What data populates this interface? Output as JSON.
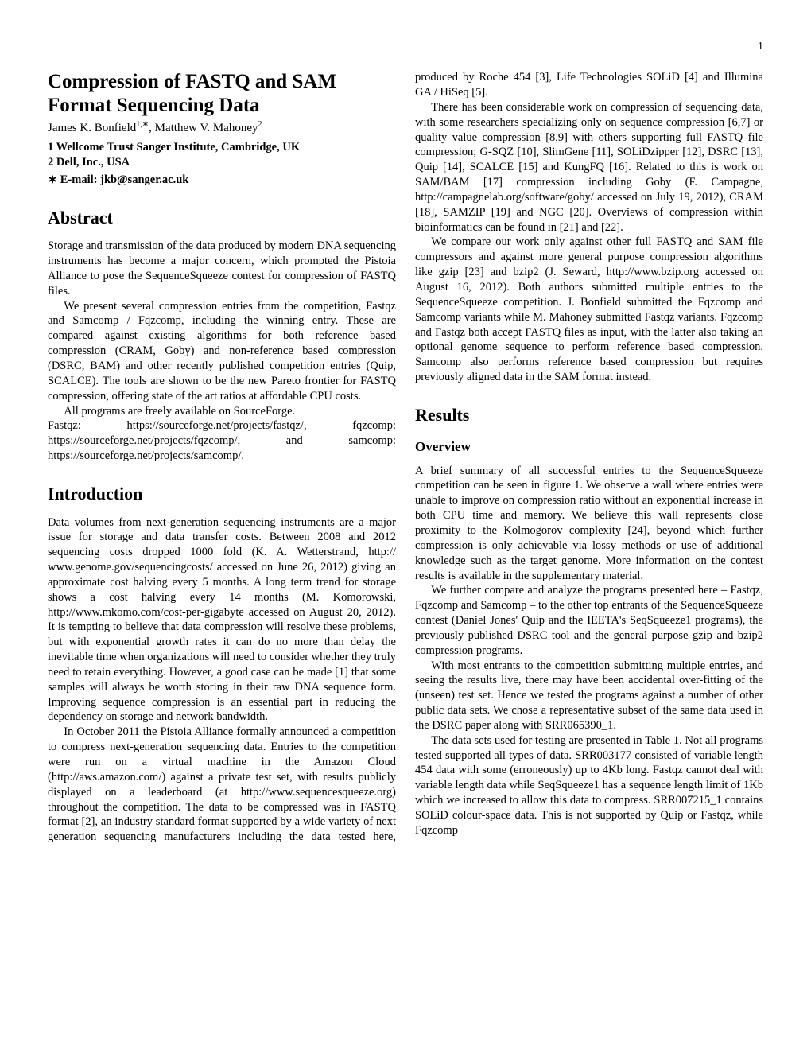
{
  "page_number": "1",
  "title": "Compression of FASTQ and SAM Format Sequencing Data",
  "authors_line": "James K. Bonfield",
  "author1_sup": "1,∗",
  "authors_sep": ", Matthew V. Mahoney",
  "author2_sup": "2",
  "affil1": "1 Wellcome Trust Sanger Institute, Cambridge, UK",
  "affil2": "2 Dell, Inc., USA",
  "email_label": "∗ E-mail: jkb@sanger.ac.uk",
  "abstract_heading": "Abstract",
  "abstract_p1": "Storage and transmission of the data produced by modern DNA sequencing instruments has become a major concern, which prompted the Pistoia Alliance to pose the SequenceSqueeze contest for compression of FASTQ files.",
  "abstract_p2": "We present several compression entries from the competition, Fastqz and Samcomp / Fqzcomp, including the winning entry. These are compared against existing algorithms for both reference based compression (CRAM, Goby) and non-reference based compression (DSRC, BAM) and other recently published competition entries (Quip, SCALCE). The tools are shown to be the new Pareto frontier for FASTQ compression, offering state of the art ratios at affordable CPU costs.",
  "abstract_p3": "All programs are freely available on SourceForge.",
  "abstract_p4": "Fastqz: https://sourceforge.net/projects/fastqz/, fqzcomp: https://sourceforge.net/projects/fqzcomp/, and samcomp: https://sourceforge.net/projects/samcomp/.",
  "intro_heading": "Introduction",
  "intro_p1": "Data volumes from next-generation sequencing instruments are a major issue for storage and data transfer costs. Between 2008 and 2012 sequencing costs dropped 1000 fold (K. A. Wetterstrand, http:// www.genome.gov/sequencingcosts/ accessed on June 26, 2012) giving an approximate cost halving every 5 months. A long term trend for storage shows a cost halving every 14 months (M. Komorowski, http://www.mkomo.com/cost-per-gigabyte accessed on August 20, 2012). It is tempting to believe that data compression will resolve these problems, but with exponential growth rates it can do no more than delay the inevitable time when organizations will need to consider whether they truly need to retain everything. However, a good case can be made [1] that some samples will always be worth storing in their raw DNA sequence form. Improving sequence compression is an essential part in reducing the dependency on storage and network bandwidth.",
  "intro_p2": "In October 2011 the Pistoia Alliance formally announced a competition to compress next-generation sequencing data. Entries to the competition were run on a virtual machine in the Amazon Cloud (http://aws.amazon.com/) against a private test set, with results publicly displayed on a leaderboard (at http://www.sequencesqueeze.org) throughout the competition. The data to be compressed was in FASTQ format [2], an industry standard format supported by a wide variety of next generation sequencing manufacturers including the data tested here, produced by Roche 454 [3], Life Technologies SOLiD [4] and Illumina GA / HiSeq [5].",
  "intro_p3": "There has been considerable work on compression of sequencing data, with some researchers specializing only on sequence compression [6,7] or quality value compression [8,9] with others supporting full FASTQ file compression; G-SQZ [10], SlimGene [11], SOLiDzipper [12], DSRC [13], Quip [14], SCALCE [15] and KungFQ [16]. Related to this is work on SAM/BAM [17] compression including Goby (F. Campagne, http://campagnelab.org/software/goby/ accessed on July 19, 2012), CRAM [18], SAMZIP [19] and NGC [20]. Overviews of compression within bioinformatics can be found in [21] and [22].",
  "intro_p4": "We compare our work only against other full FASTQ and SAM file compressors and against more general purpose compression algorithms like gzip [23] and bzip2 (J. Seward, http://www.bzip.org accessed on August 16, 2012). Both authors submitted multiple entries to the SequenceSqueeze competition. J. Bonfield submitted the Fqzcomp and Samcomp variants while M. Mahoney submitted Fastqz variants. Fqzcomp and Fastqz both accept FASTQ files as input, with the latter also taking an optional genome sequence to perform reference based compression. Samcomp also performs reference based compression but requires previously aligned data in the SAM format instead.",
  "results_heading": "Results",
  "overview_heading": "Overview",
  "results_p1": "A brief summary of all successful entries to the SequenceSqueeze competition can be seen in figure 1. We observe a wall where entries were unable to improve on compression ratio without an exponential increase in both CPU time and memory. We believe this wall represents close proximity to the Kolmogorov complexity [24], beyond which further compression is only achievable via lossy methods or use of additional knowledge such as the target genome. More information on the contest results is available in the supplementary material.",
  "results_p2": "We further compare and analyze the programs presented here – Fastqz, Fqzcomp and Samcomp – to the other top entrants of the SequenceSqueeze contest (Daniel Jones' Quip and the IEETA's SeqSqueeze1 programs), the previously published DSRC tool and the general purpose gzip and bzip2 compression programs.",
  "results_p3": "With most entrants to the competition submitting multiple entries, and seeing the results live, there may have been accidental over-fitting of the (unseen) test set. Hence we tested the programs against a number of other public data sets. We chose a representative subset of the same data used in the DSRC paper along with SRR065390_1.",
  "results_p4": "The data sets used for testing are presented in Table 1. Not all programs tested supported all types of data. SRR003177 consisted of variable length 454 data with some (erroneously) up to 4Kb long. Fastqz cannot deal with variable length data while SeqSqueeze1 has a sequence length limit of 1Kb which we increased to allow this data to compress. SRR007215_1 contains SOLiD colour-space data. This is not supported by Quip or Fastqz, while Fqzcomp"
}
